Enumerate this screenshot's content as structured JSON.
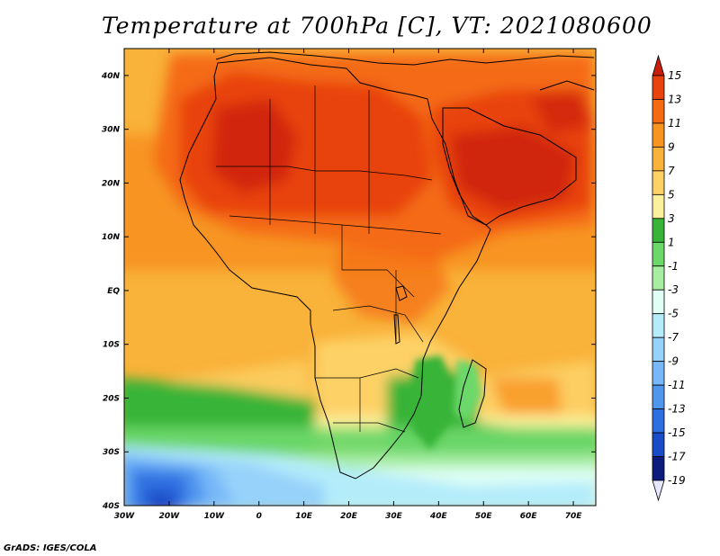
{
  "title": "Temperature at 700hPa [C], VT: 2021080600",
  "credit": "GrADS: IGES/COLA",
  "map": {
    "lon_range": [
      -30,
      75
    ],
    "lat_range": [
      -40,
      45
    ],
    "lon_ticks": [
      {
        "value": -30,
        "label": "30W"
      },
      {
        "value": -20,
        "label": "20W"
      },
      {
        "value": -10,
        "label": "10W"
      },
      {
        "value": 0,
        "label": "0"
      },
      {
        "value": 10,
        "label": "10E"
      },
      {
        "value": 20,
        "label": "20E"
      },
      {
        "value": 30,
        "label": "30E"
      },
      {
        "value": 40,
        "label": "40E"
      },
      {
        "value": 50,
        "label": "50E"
      },
      {
        "value": 60,
        "label": "60E"
      },
      {
        "value": 70,
        "label": "70E"
      }
    ],
    "lat_ticks": [
      {
        "value": 40,
        "label": "40N"
      },
      {
        "value": 30,
        "label": "30N"
      },
      {
        "value": 20,
        "label": "20N"
      },
      {
        "value": 10,
        "label": "10N"
      },
      {
        "value": 0,
        "label": "EQ"
      },
      {
        "value": -10,
        "label": "10S"
      },
      {
        "value": -20,
        "label": "20S"
      },
      {
        "value": -30,
        "label": "30S"
      },
      {
        "value": -40,
        "label": "40S"
      }
    ]
  },
  "colorbar": {
    "levels": [
      {
        "label": "15",
        "color": "#c81e0c"
      },
      {
        "label": "13",
        "color": "#e8420e"
      },
      {
        "label": "11",
        "color": "#f46b14"
      },
      {
        "label": "9",
        "color": "#f79422"
      },
      {
        "label": "7",
        "color": "#f9b23a"
      },
      {
        "label": "5",
        "color": "#fdd166"
      },
      {
        "label": "3",
        "color": "#fcf09c"
      },
      {
        "label": "1",
        "color": "#38b438"
      },
      {
        "label": "-1",
        "color": "#6cd86a"
      },
      {
        "label": "-3",
        "color": "#a8eda2"
      },
      {
        "label": "-5",
        "color": "#e0fff5"
      },
      {
        "label": "-7",
        "color": "#b4ecfa"
      },
      {
        "label": "-9",
        "color": "#96d2fa"
      },
      {
        "label": "-11",
        "color": "#78b8f8"
      },
      {
        "label": "-13",
        "color": "#5096ef"
      },
      {
        "label": "-15",
        "color": "#2d6ee0"
      },
      {
        "label": "-17",
        "color": "#1a4cc8"
      },
      {
        "label": "-19",
        "color": "#0c1c7c"
      }
    ],
    "bottom_color": "#e6e6fc"
  }
}
